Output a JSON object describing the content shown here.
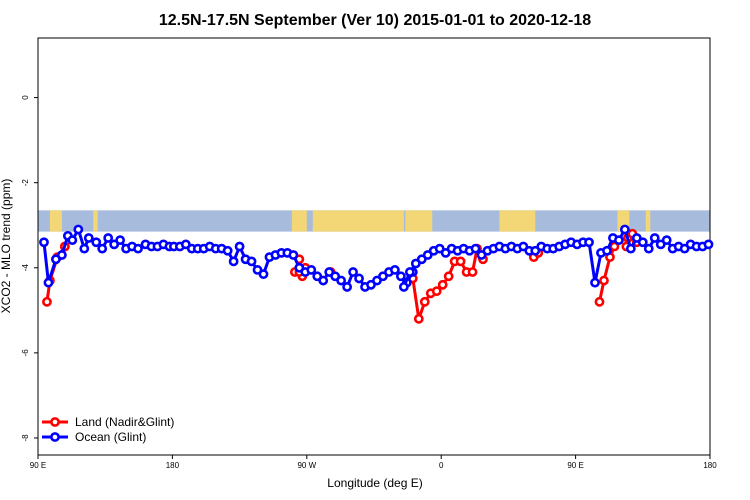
{
  "chart_data": {
    "type": "line",
    "title": "12.5N-17.5N September (Ver 10)   2015-01-01 to 2020-12-18",
    "xlabel": "Longitude (deg E)",
    "ylabel": "XCO2 - MLO trend (ppm)",
    "xlim": [
      90,
      540
    ],
    "ylim": [
      -8.4,
      1.4
    ],
    "x_ticks": [
      {
        "value": 90,
        "label": "90 E"
      },
      {
        "value": 180,
        "label": "180"
      },
      {
        "value": 270,
        "label": "90 W"
      },
      {
        "value": 360,
        "label": "0"
      },
      {
        "value": 450,
        "label": "90 E"
      },
      {
        "value": 540,
        "label": "180"
      }
    ],
    "y_ticks": [
      0,
      -2,
      -4,
      -6,
      -8
    ],
    "legend_position": "bottom-left",
    "land_mask": {
      "ymin": -3.15,
      "ymax": -2.65,
      "ocean_color": "#a7bcdc",
      "land_color": "#f3d676",
      "land_spans": [
        [
          98,
          106
        ],
        [
          127,
          130
        ],
        [
          260,
          270
        ],
        [
          274,
          276
        ],
        [
          274.8,
          335
        ],
        [
          336,
          354
        ],
        [
          399,
          423
        ],
        [
          478,
          486
        ],
        [
          497,
          500
        ]
      ]
    },
    "series": [
      {
        "name": "Land (Nadir&Glint)",
        "color": "#ff0000",
        "segments": [
          {
            "x": [
              96,
              98,
              103,
              108,
              108
            ],
            "y": [
              -4.8,
              -4.3,
              -3.75,
              -3.5,
              -3.5
            ]
          },
          {
            "x": [
              262,
              265,
              267
            ],
            "y": [
              -4.1,
              -3.8,
              -4.2
            ]
          },
          {
            "x": [
              265,
              269
            ],
            "y": [
              -4.1,
              -4.0
            ]
          },
          {
            "x": [
              286
            ],
            "y": [
              -4.1
            ]
          },
          {
            "x": [
              341,
              345,
              349,
              353,
              357,
              361,
              365,
              369,
              373,
              377,
              381,
              384,
              388
            ],
            "y": [
              -4.25,
              -5.2,
              -4.8,
              -4.6,
              -4.55,
              -4.4,
              -4.2,
              -3.85,
              -3.85,
              -4.1,
              -4.1,
              -3.55,
              -3.8
            ]
          },
          {
            "x": [
              422,
              425
            ],
            "y": [
              -3.75,
              -3.65
            ]
          },
          {
            "x": [
              466,
              469,
              473,
              476
            ],
            "y": [
              -4.8,
              -4.3,
              -3.75,
              -3.5
            ]
          },
          {
            "x": [
              484,
              485,
              488,
              491
            ],
            "y": [
              -3.5,
              -3.3,
              -3.2,
              -3.4
            ]
          }
        ]
      },
      {
        "name": "Ocean (Glint)",
        "color": "#0000ff",
        "segments": [
          {
            "x": [
              94,
              97,
              102,
              106,
              110,
              113,
              117,
              121,
              124,
              129,
              133,
              137,
              141,
              145,
              149,
              153,
              157,
              162,
              166,
              170,
              174,
              178,
              181,
              185,
              189,
              193,
              197,
              201,
              205,
              209,
              213,
              217,
              221,
              225,
              229,
              233,
              237,
              241,
              245,
              249,
              253,
              257,
              261,
              265,
              269,
              273,
              277,
              281,
              285,
              289,
              293,
              297,
              301,
              305,
              309,
              313,
              317,
              321,
              325,
              329,
              333,
              337,
              341
            ],
            "y": [
              -3.4,
              -4.35,
              -3.8,
              -3.7,
              -3.25,
              -3.35,
              -3.1,
              -3.55,
              -3.3,
              -3.4,
              -3.55,
              -3.3,
              -3.45,
              -3.35,
              -3.55,
              -3.5,
              -3.55,
              -3.45,
              -3.5,
              -3.5,
              -3.45,
              -3.5,
              -3.5,
              -3.5,
              -3.45,
              -3.55,
              -3.55,
              -3.55,
              -3.5,
              -3.55,
              -3.55,
              -3.6,
              -3.85,
              -3.5,
              -3.8,
              -3.85,
              -4.05,
              -4.15,
              -3.75,
              -3.7,
              -3.65,
              -3.65,
              -3.7,
              -4.0,
              -4.1,
              -4.05,
              -4.2,
              -4.3,
              -4.1,
              -4.2,
              -4.3,
              -4.45,
              -4.1,
              -4.25,
              -4.45,
              -4.4,
              -4.3,
              -4.2,
              -4.1,
              -4.05,
              -4.2,
              -4.35,
              -4.1
            ]
          },
          {
            "x": [
              335,
              339,
              343,
              347,
              351,
              355,
              359,
              363,
              367,
              371,
              375,
              379,
              383,
              387,
              391,
              395,
              399,
              403,
              407,
              411,
              415,
              419,
              423,
              427,
              431,
              435,
              439,
              443,
              447,
              451,
              455,
              459,
              463,
              467,
              471,
              475,
              479,
              483,
              487,
              491,
              495,
              499,
              503,
              507,
              511,
              515,
              519,
              523,
              527,
              531,
              535,
              539
            ],
            "y": [
              -4.45,
              -4.1,
              -3.9,
              -3.8,
              -3.7,
              -3.6,
              -3.55,
              -3.65,
              -3.55,
              -3.6,
              -3.55,
              -3.6,
              -3.55,
              -3.7,
              -3.6,
              -3.55,
              -3.5,
              -3.55,
              -3.5,
              -3.55,
              -3.5,
              -3.6,
              -3.6,
              -3.5,
              -3.55,
              -3.55,
              -3.5,
              -3.45,
              -3.4,
              -3.45,
              -3.4,
              -3.4,
              -4.35,
              -3.65,
              -3.6,
              -3.3,
              -3.35,
              -3.1,
              -3.55,
              -3.3,
              -3.4,
              -3.55,
              -3.3,
              -3.45,
              -3.35,
              -3.55,
              -3.5,
              -3.55,
              -3.45,
              -3.5,
              -3.5,
              -3.45
            ]
          }
        ]
      }
    ]
  }
}
